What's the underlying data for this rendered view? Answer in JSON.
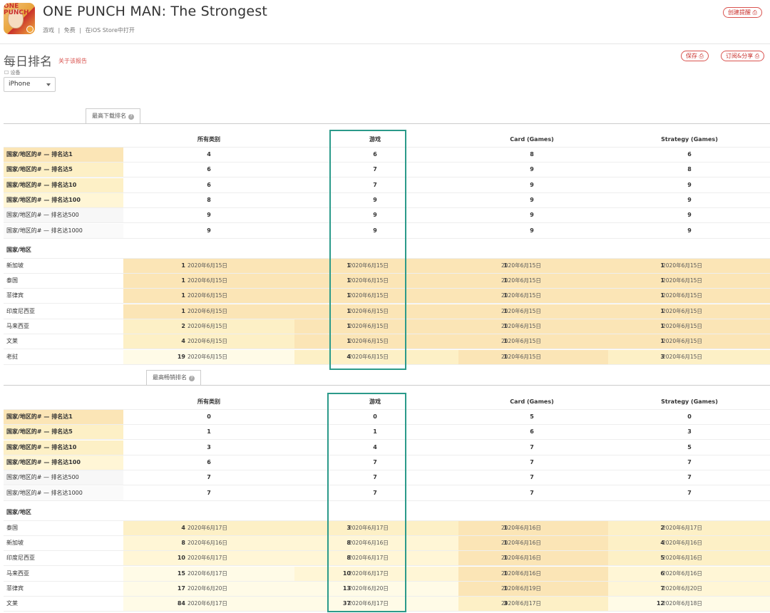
{
  "app": {
    "title": "ONE PUNCH MAN: The Strongest",
    "icon_text": "ONE PUNCH",
    "meta": [
      "游戏",
      "|",
      "免费",
      "|",
      "在iOS Store中打开"
    ],
    "create_alert": "创建提醒 ⎙"
  },
  "page": {
    "title": "每日排名",
    "report_link": "关于该报告",
    "save_button": "保存 ⎙",
    "share_button": "订阅&分享 ⎙",
    "device_label": "☐ 设备",
    "device_value": "iPhone"
  },
  "columns": [
    "所有类别",
    "游戏",
    "Card (Games)",
    "Strategy (Games)"
  ],
  "top_downloads": {
    "tab": "最高下载排名",
    "summary": [
      {
        "label": "国家/地区的# — 排名达1",
        "values": [
          "4",
          "6",
          "8",
          "6"
        ]
      },
      {
        "label": "国家/地区的# — 排名达5",
        "values": [
          "6",
          "7",
          "9",
          "8"
        ]
      },
      {
        "label": "国家/地区的# — 排名达10",
        "values": [
          "6",
          "7",
          "9",
          "9"
        ]
      },
      {
        "label": "国家/地区的# — 排名达100",
        "values": [
          "8",
          "9",
          "9",
          "9"
        ]
      },
      {
        "label": "国家/地区的# — 排名达500",
        "values": [
          "9",
          "9",
          "9",
          "9"
        ]
      },
      {
        "label": "国家/地区的# — 排名达1000",
        "values": [
          "9",
          "9",
          "9",
          "9"
        ]
      }
    ],
    "region_header": "国家/地区",
    "regions": [
      {
        "name": "新加坡",
        "cells": [
          [
            "1",
            "2020年6月15日"
          ],
          [
            "1",
            "2020年6月15日"
          ],
          [
            "1",
            "2020年6月15日"
          ],
          [
            "1",
            "2020年6月15日"
          ]
        ]
      },
      {
        "name": "泰国",
        "cells": [
          [
            "1",
            "2020年6月15日"
          ],
          [
            "1",
            "2020年6月15日"
          ],
          [
            "1",
            "2020年6月15日"
          ],
          [
            "1",
            "2020年6月15日"
          ]
        ]
      },
      {
        "name": "菲律宾",
        "cells": [
          [
            "1",
            "2020年6月15日"
          ],
          [
            "1",
            "2020年6月15日"
          ],
          [
            "1",
            "2020年6月15日"
          ],
          [
            "1",
            "2020年6月15日"
          ]
        ]
      },
      {
        "name": "印度尼西亚",
        "cells": [
          [
            "1",
            "2020年6月15日"
          ],
          [
            "1",
            "2020年6月15日"
          ],
          [
            "1",
            "2020年6月15日"
          ],
          [
            "1",
            "2020年6月15日"
          ]
        ]
      },
      {
        "name": "马来西亚",
        "cells": [
          [
            "2",
            "2020年6月15日"
          ],
          [
            "1",
            "2020年6月15日"
          ],
          [
            "1",
            "2020年6月15日"
          ],
          [
            "1",
            "2020年6月15日"
          ]
        ]
      },
      {
        "name": "文莱",
        "cells": [
          [
            "4",
            "2020年6月15日"
          ],
          [
            "1",
            "2020年6月15日"
          ],
          [
            "1",
            "2020年6月15日"
          ],
          [
            "1",
            "2020年6月15日"
          ]
        ]
      },
      {
        "name": "老挝",
        "cells": [
          [
            "19",
            "2020年6月15日"
          ],
          [
            "4",
            "2020年6月15日"
          ],
          [
            "1",
            "2020年6月15日"
          ],
          [
            "3",
            "2020年6月15日"
          ]
        ]
      }
    ]
  },
  "top_grossing": {
    "tab": "最高畅销排名",
    "summary": [
      {
        "label": "国家/地区的# — 排名达1",
        "values": [
          "0",
          "0",
          "5",
          "0"
        ]
      },
      {
        "label": "国家/地区的# — 排名达5",
        "values": [
          "1",
          "1",
          "6",
          "3"
        ]
      },
      {
        "label": "国家/地区的# — 排名达10",
        "values": [
          "3",
          "4",
          "7",
          "5"
        ]
      },
      {
        "label": "国家/地区的# — 排名达100",
        "values": [
          "6",
          "7",
          "7",
          "7"
        ]
      },
      {
        "label": "国家/地区的# — 排名达500",
        "values": [
          "7",
          "7",
          "7",
          "7"
        ]
      },
      {
        "label": "国家/地区的# — 排名达1000",
        "values": [
          "7",
          "7",
          "7",
          "7"
        ]
      }
    ],
    "region_header": "国家/地区",
    "regions": [
      {
        "name": "泰国",
        "cells": [
          [
            "4",
            "2020年6月17日"
          ],
          [
            "3",
            "2020年6月17日"
          ],
          [
            "1",
            "2020年6月16日"
          ],
          [
            "2",
            "2020年6月17日"
          ]
        ]
      },
      {
        "name": "新加坡",
        "cells": [
          [
            "8",
            "2020年6月16日"
          ],
          [
            "8",
            "2020年6月16日"
          ],
          [
            "1",
            "2020年6月16日"
          ],
          [
            "4",
            "2020年6月16日"
          ]
        ]
      },
      {
        "name": "印度尼西亚",
        "cells": [
          [
            "10",
            "2020年6月17日"
          ],
          [
            "8",
            "2020年6月17日"
          ],
          [
            "1",
            "2020年6月16日"
          ],
          [
            "5",
            "2020年6月16日"
          ]
        ]
      },
      {
        "name": "马来西亚",
        "cells": [
          [
            "15",
            "2020年6月17日"
          ],
          [
            "10",
            "2020年6月17日"
          ],
          [
            "1",
            "2020年6月16日"
          ],
          [
            "6",
            "2020年6月16日"
          ]
        ]
      },
      {
        "name": "菲律宾",
        "cells": [
          [
            "17",
            "2020年6月20日"
          ],
          [
            "13",
            "2020年6月20日"
          ],
          [
            "1",
            "2020年6月19日"
          ],
          [
            "7",
            "2020年6月20日"
          ]
        ]
      },
      {
        "name": "文莱",
        "cells": [
          [
            "84",
            "2020年6月17日"
          ],
          [
            "37",
            "2020年6月17日"
          ],
          [
            "3",
            "2020年6月17日"
          ],
          [
            "12",
            "2020年6月18日"
          ]
        ]
      }
    ]
  }
}
